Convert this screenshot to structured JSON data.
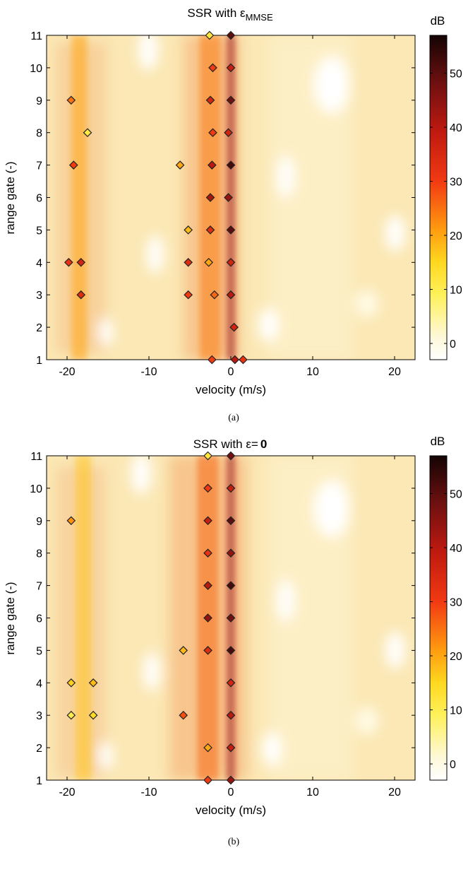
{
  "chart_data": [
    {
      "type": "heatmap",
      "title": "SSR with ε",
      "title_subscript": "MMSE",
      "xlabel": "velocity (m/s)",
      "ylabel": "range gate (-)",
      "xlim": [
        -22.5,
        22.5
      ],
      "ylim": [
        1,
        11
      ],
      "xticks": [
        "-20",
        "-10",
        "0",
        "10",
        "20"
      ],
      "yticks": [
        "1",
        "2",
        "3",
        "4",
        "5",
        "6",
        "7",
        "8",
        "9",
        "10",
        "11"
      ],
      "colorbar": {
        "label": "dB",
        "range": [
          -3,
          57
        ],
        "ticks": [
          "0",
          "10",
          "20",
          "30",
          "40",
          "50"
        ]
      },
      "caption": "(a)",
      "background_ridges": [
        {
          "velocity": 0,
          "level_db": 35
        },
        {
          "velocity": -2.5,
          "level_db": 24
        },
        {
          "velocity": -18.5,
          "level_db": 20
        }
      ],
      "detections": [
        {
          "velocity": -2.6,
          "range_gate": 11,
          "level_db": 12
        },
        {
          "velocity": 0,
          "range_gate": 11,
          "level_db": 50
        },
        {
          "velocity": -2.2,
          "range_gate": 10,
          "level_db": 30
        },
        {
          "velocity": 0,
          "range_gate": 10,
          "level_db": 38
        },
        {
          "velocity": -19.5,
          "range_gate": 9,
          "level_db": 25
        },
        {
          "velocity": -2.5,
          "range_gate": 9,
          "level_db": 36
        },
        {
          "velocity": 0,
          "range_gate": 9,
          "level_db": 48
        },
        {
          "velocity": -17.5,
          "range_gate": 8,
          "level_db": 11
        },
        {
          "velocity": -2.2,
          "range_gate": 8,
          "level_db": 30
        },
        {
          "velocity": -0.3,
          "range_gate": 8,
          "level_db": 36
        },
        {
          "velocity": -19.2,
          "range_gate": 7,
          "level_db": 30
        },
        {
          "velocity": -6.2,
          "range_gate": 7,
          "level_db": 20
        },
        {
          "velocity": -2.3,
          "range_gate": 7,
          "level_db": 40
        },
        {
          "velocity": 0,
          "range_gate": 7,
          "level_db": 52
        },
        {
          "velocity": -2.5,
          "range_gate": 6,
          "level_db": 42
        },
        {
          "velocity": -0.3,
          "range_gate": 6,
          "level_db": 44
        },
        {
          "velocity": -5.2,
          "range_gate": 5,
          "level_db": 18
        },
        {
          "velocity": -2.5,
          "range_gate": 5,
          "level_db": 34
        },
        {
          "velocity": 0,
          "range_gate": 5,
          "level_db": 50
        },
        {
          "velocity": -19.8,
          "range_gate": 4,
          "level_db": 32
        },
        {
          "velocity": -18.3,
          "range_gate": 4,
          "level_db": 36
        },
        {
          "velocity": -5.2,
          "range_gate": 4,
          "level_db": 34
        },
        {
          "velocity": -2.7,
          "range_gate": 4,
          "level_db": 20
        },
        {
          "velocity": 0,
          "range_gate": 4,
          "level_db": 36
        },
        {
          "velocity": -18.3,
          "range_gate": 3,
          "level_db": 34
        },
        {
          "velocity": -5.2,
          "range_gate": 3,
          "level_db": 30
        },
        {
          "velocity": -2,
          "range_gate": 3,
          "level_db": 26
        },
        {
          "velocity": 0,
          "range_gate": 3,
          "level_db": 40
        },
        {
          "velocity": 0.4,
          "range_gate": 2,
          "level_db": 36
        },
        {
          "velocity": -2.3,
          "range_gate": 1,
          "level_db": 30
        },
        {
          "velocity": 0.5,
          "range_gate": 1,
          "level_db": 40
        },
        {
          "velocity": 1.5,
          "range_gate": 1,
          "level_db": 32
        }
      ]
    },
    {
      "type": "heatmap",
      "title": "SSR with ε=",
      "title_bold": "0",
      "xlabel": "velocity (m/s)",
      "ylabel": "range gate (-)",
      "xlim": [
        -22.5,
        22.5
      ],
      "ylim": [
        1,
        11
      ],
      "xticks": [
        "-20",
        "-10",
        "0",
        "10",
        "20"
      ],
      "yticks": [
        "1",
        "2",
        "3",
        "4",
        "5",
        "6",
        "7",
        "8",
        "9",
        "10",
        "11"
      ],
      "colorbar": {
        "label": "dB",
        "range": [
          -3,
          57
        ],
        "ticks": [
          "0",
          "10",
          "20",
          "30",
          "40",
          "50"
        ]
      },
      "caption": "(b)",
      "background_ridges": [
        {
          "velocity": 0,
          "level_db": 35
        },
        {
          "velocity": -2.8,
          "level_db": 26
        },
        {
          "velocity": -18,
          "level_db": 17
        }
      ],
      "detections": [
        {
          "velocity": -2.8,
          "range_gate": 11,
          "level_db": 12
        },
        {
          "velocity": 0,
          "range_gate": 11,
          "level_db": 48
        },
        {
          "velocity": -2.8,
          "range_gate": 10,
          "level_db": 30
        },
        {
          "velocity": 0,
          "range_gate": 10,
          "level_db": 38
        },
        {
          "velocity": -19.5,
          "range_gate": 9,
          "level_db": 22
        },
        {
          "velocity": -2.8,
          "range_gate": 9,
          "level_db": 38
        },
        {
          "velocity": 0,
          "range_gate": 9,
          "level_db": 50
        },
        {
          "velocity": -2.8,
          "range_gate": 8,
          "level_db": 32
        },
        {
          "velocity": 0,
          "range_gate": 8,
          "level_db": 44
        },
        {
          "velocity": -2.8,
          "range_gate": 7,
          "level_db": 40
        },
        {
          "velocity": 0,
          "range_gate": 7,
          "level_db": 52
        },
        {
          "velocity": -2.8,
          "range_gate": 6,
          "level_db": 44
        },
        {
          "velocity": 0,
          "range_gate": 6,
          "level_db": 48
        },
        {
          "velocity": -5.8,
          "range_gate": 5,
          "level_db": 18
        },
        {
          "velocity": -2.8,
          "range_gate": 5,
          "level_db": 34
        },
        {
          "velocity": 0,
          "range_gate": 5,
          "level_db": 52
        },
        {
          "velocity": -19.5,
          "range_gate": 4,
          "level_db": 16
        },
        {
          "velocity": -16.8,
          "range_gate": 4,
          "level_db": 18
        },
        {
          "velocity": 0,
          "range_gate": 4,
          "level_db": 36
        },
        {
          "velocity": -19.5,
          "range_gate": 3,
          "level_db": 10
        },
        {
          "velocity": -16.8,
          "range_gate": 3,
          "level_db": 14
        },
        {
          "velocity": -5.8,
          "range_gate": 3,
          "level_db": 28
        },
        {
          "velocity": 0,
          "range_gate": 3,
          "level_db": 40
        },
        {
          "velocity": -2.8,
          "range_gate": 2,
          "level_db": 20
        },
        {
          "velocity": 0,
          "range_gate": 2,
          "level_db": 38
        },
        {
          "velocity": -2.8,
          "range_gate": 1,
          "level_db": 30
        },
        {
          "velocity": 0,
          "range_gate": 1,
          "level_db": 44
        }
      ]
    }
  ]
}
